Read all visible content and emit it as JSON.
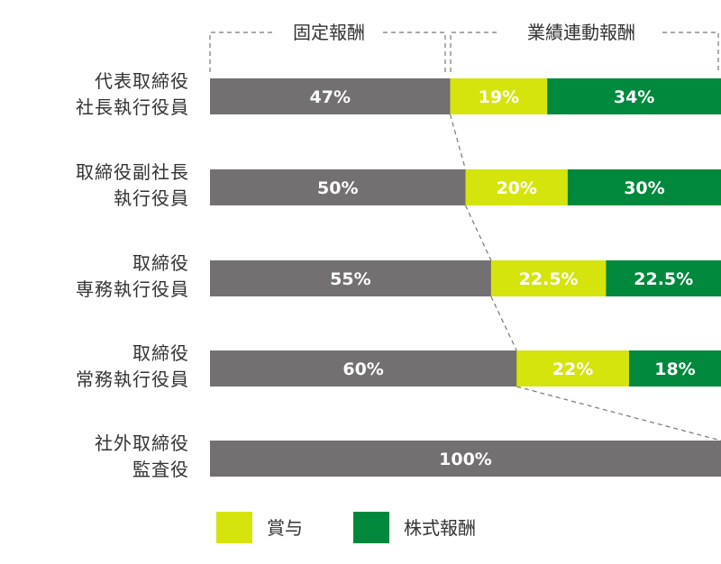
{
  "chart_data": {
    "type": "bar",
    "orientation": "horizontal",
    "stacked": true,
    "unit": "%",
    "xlim": [
      0,
      100
    ],
    "categories": [
      [
        "代表取締役",
        "社長執行役員"
      ],
      [
        "取締役副社長",
        "執行役員"
      ],
      [
        "取締役",
        "専務執行役員"
      ],
      [
        "取締役",
        "常務執行役員"
      ],
      [
        "社外取締役",
        "監査役"
      ]
    ],
    "series": [
      {
        "key": "fixed",
        "color": "#727071",
        "values": [
          47,
          50,
          55,
          60,
          100
        ],
        "labels": [
          "47%",
          "50%",
          "55%",
          "60%",
          "100%"
        ]
      },
      {
        "key": "bonus",
        "name": "賞与",
        "color": "#d5e40c",
        "values": [
          19,
          20,
          22.5,
          22,
          0
        ],
        "labels": [
          "19%",
          "20%",
          "22.5%",
          "22%",
          ""
        ]
      },
      {
        "key": "stock",
        "name": "株式報酬",
        "color": "#00893c",
        "values": [
          34,
          30,
          22.5,
          18,
          0
        ],
        "labels": [
          "34%",
          "30%",
          "22.5%",
          "18%",
          ""
        ]
      }
    ],
    "group_headers": {
      "fixed": "固定報酬",
      "performance": "業績連動報酬"
    },
    "legend": {
      "position": "bottom-left",
      "items": [
        "賞与",
        "株式報酬"
      ]
    },
    "grid": false
  }
}
